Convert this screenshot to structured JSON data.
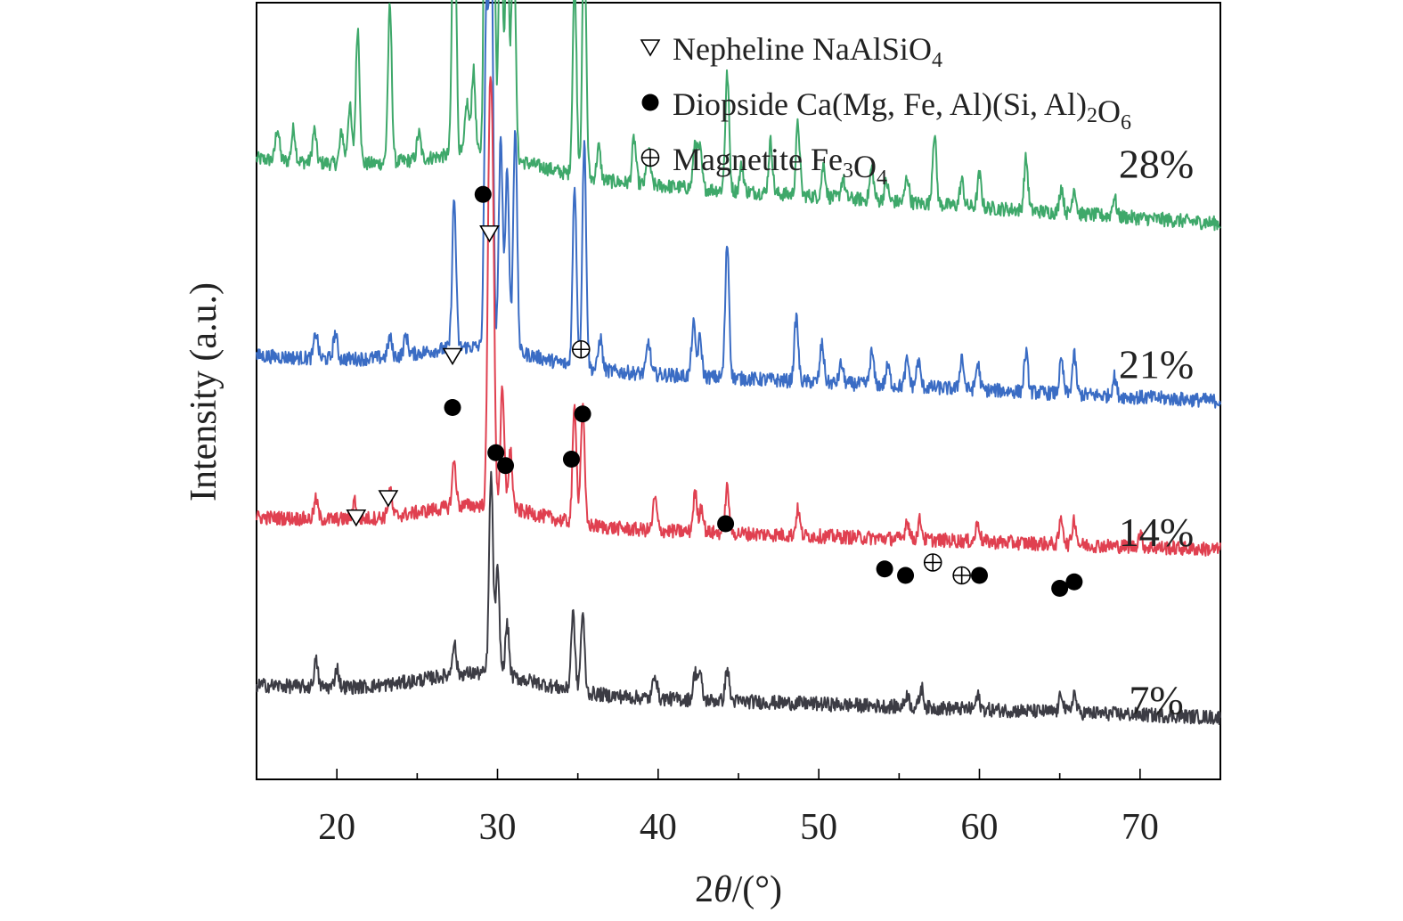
{
  "chart_data": {
    "type": "line",
    "title": "",
    "xlabel_prefix": "2",
    "xlabel_symbol": "θ",
    "xlabel_suffix": "/(°)",
    "ylabel": "Intensity (a.u.)",
    "xlim": [
      15,
      75
    ],
    "xticks": [
      20,
      30,
      40,
      50,
      60,
      70
    ],
    "grid": false,
    "legend_position": "top-right",
    "legend": [
      {
        "marker": "nepheline",
        "name": "Nepheline NaAlSiO",
        "sub": "4",
        "tail": "",
        "sub2": "",
        "tail2": ""
      },
      {
        "marker": "diopside",
        "name": "Diopside Ca(Mg, Fe, Al)(Si, Al)",
        "sub": "2",
        "tail": "O",
        "sub2": "6",
        "tail2": ""
      },
      {
        "marker": "magnetite",
        "name": "Magnetite Fe",
        "sub": "3",
        "tail": "O",
        "sub2": "4",
        "tail2": ""
      }
    ],
    "series": [
      {
        "name": "28%",
        "color": "#3ea86a",
        "baseline": 0.885,
        "slope": -0.1,
        "peaks": [
          [
            16.3,
            0.05
          ],
          [
            17.3,
            0.05
          ],
          [
            18.6,
            0.05
          ],
          [
            20.3,
            0.05
          ],
          [
            20.8,
            0.09
          ],
          [
            21.3,
            0.21
          ],
          [
            23.3,
            0.24
          ],
          [
            25.1,
            0.04
          ],
          [
            27.3,
            0.48
          ],
          [
            28.1,
            0.08
          ],
          [
            28.5,
            0.13
          ],
          [
            29.3,
            0.79
          ],
          [
            29.7,
            0.66
          ],
          [
            30.2,
            0.42
          ],
          [
            30.6,
            0.36
          ],
          [
            31.0,
            0.38
          ],
          [
            34.8,
            0.3
          ],
          [
            35.4,
            0.38
          ],
          [
            36.3,
            0.05
          ],
          [
            38.5,
            0.07
          ],
          [
            39.4,
            0.05
          ],
          [
            42.3,
            0.07
          ],
          [
            42.6,
            0.06
          ],
          [
            44.3,
            0.18
          ],
          [
            45.2,
            0.04
          ],
          [
            47.0,
            0.08
          ],
          [
            48.7,
            0.11
          ],
          [
            50.3,
            0.05
          ],
          [
            51.5,
            0.03
          ],
          [
            53.3,
            0.05
          ],
          [
            54.2,
            0.03
          ],
          [
            55.5,
            0.04
          ],
          [
            57.2,
            0.11
          ],
          [
            58.9,
            0.04
          ],
          [
            60.0,
            0.05
          ],
          [
            62.9,
            0.08
          ],
          [
            65.1,
            0.04
          ],
          [
            65.9,
            0.04
          ],
          [
            68.4,
            0.03
          ]
        ]
      },
      {
        "name": "21%",
        "color": "#3a6cc4",
        "baseline": 0.58,
        "slope": -0.07,
        "peaks": [
          [
            18.7,
            0.04
          ],
          [
            19.9,
            0.04
          ],
          [
            23.3,
            0.03
          ],
          [
            24.3,
            0.03
          ],
          [
            27.3,
            0.23
          ],
          [
            29.3,
            0.5
          ],
          [
            29.6,
            0.68
          ],
          [
            30.2,
            0.33
          ],
          [
            30.6,
            0.28
          ],
          [
            31.1,
            0.35
          ],
          [
            34.8,
            0.28
          ],
          [
            35.4,
            0.35
          ],
          [
            36.4,
            0.05
          ],
          [
            39.4,
            0.05
          ],
          [
            42.2,
            0.08
          ],
          [
            42.6,
            0.06
          ],
          [
            44.3,
            0.21
          ],
          [
            48.6,
            0.1
          ],
          [
            50.2,
            0.06
          ],
          [
            51.4,
            0.03
          ],
          [
            53.3,
            0.05
          ],
          [
            54.3,
            0.03
          ],
          [
            55.5,
            0.04
          ],
          [
            56.2,
            0.04
          ],
          [
            58.9,
            0.05
          ],
          [
            59.9,
            0.04
          ],
          [
            62.9,
            0.06
          ],
          [
            65.1,
            0.05
          ],
          [
            65.9,
            0.06
          ],
          [
            68.4,
            0.03
          ]
        ]
      },
      {
        "name": "14%",
        "color": "#e04050",
        "baseline": 0.33,
        "slope": -0.05,
        "peaks": [
          [
            18.7,
            0.03
          ],
          [
            21.1,
            0.03
          ],
          [
            23.3,
            0.04
          ],
          [
            27.3,
            0.07
          ],
          [
            29.5,
            0.52
          ],
          [
            29.7,
            0.42
          ],
          [
            30.3,
            0.18
          ],
          [
            30.8,
            0.09
          ],
          [
            34.8,
            0.18
          ],
          [
            35.3,
            0.18
          ],
          [
            39.8,
            0.05
          ],
          [
            42.3,
            0.06
          ],
          [
            42.7,
            0.04
          ],
          [
            44.3,
            0.07
          ],
          [
            48.7,
            0.04
          ],
          [
            55.5,
            0.03
          ],
          [
            56.3,
            0.03
          ],
          [
            59.9,
            0.03
          ],
          [
            65.1,
            0.04
          ],
          [
            65.9,
            0.04
          ],
          [
            70.0,
            0.02
          ]
        ]
      },
      {
        "name": "7%",
        "color": "#3c3c44",
        "baseline": 0.07,
        "slope": -0.05,
        "peaks": [
          [
            18.7,
            0.04
          ],
          [
            20.0,
            0.03
          ],
          [
            27.3,
            0.05
          ],
          [
            29.6,
            0.31
          ],
          [
            30.0,
            0.16
          ],
          [
            30.6,
            0.08
          ],
          [
            34.7,
            0.12
          ],
          [
            35.3,
            0.12
          ],
          [
            39.8,
            0.04
          ],
          [
            42.3,
            0.04
          ],
          [
            42.6,
            0.04
          ],
          [
            44.3,
            0.05
          ],
          [
            55.5,
            0.02
          ],
          [
            56.4,
            0.03
          ],
          [
            59.9,
            0.02
          ],
          [
            65.1,
            0.03
          ],
          [
            65.9,
            0.03
          ]
        ]
      }
    ],
    "series_label_positions": [
      0.875,
      0.565,
      0.305,
      0.045
    ],
    "phase_markers": [
      {
        "type": "nepheline",
        "x": 21.2,
        "y": 0.33
      },
      {
        "type": "nepheline",
        "x": 23.2,
        "y": 0.36
      },
      {
        "type": "diopside",
        "x": 27.2,
        "y": 0.5
      },
      {
        "type": "nepheline",
        "x": 27.2,
        "y": 0.58
      },
      {
        "type": "diopside",
        "x": 29.1,
        "y": 0.83
      },
      {
        "type": "nepheline",
        "x": 29.5,
        "y": 0.77
      },
      {
        "type": "diopside",
        "x": 29.9,
        "y": 0.43
      },
      {
        "type": "diopside",
        "x": 30.5,
        "y": 0.41
      },
      {
        "type": "diopside",
        "x": 34.6,
        "y": 0.42
      },
      {
        "type": "diopside",
        "x": 35.3,
        "y": 0.49
      },
      {
        "type": "magnetite",
        "x": 35.2,
        "y": 0.59
      },
      {
        "type": "diopside",
        "x": 44.2,
        "y": 0.32
      },
      {
        "type": "diopside",
        "x": 54.1,
        "y": 0.25
      },
      {
        "type": "diopside",
        "x": 55.4,
        "y": 0.24
      },
      {
        "type": "magnetite",
        "x": 57.1,
        "y": 0.26
      },
      {
        "type": "magnetite",
        "x": 58.9,
        "y": 0.24
      },
      {
        "type": "diopside",
        "x": 60.0,
        "y": 0.24
      },
      {
        "type": "diopside",
        "x": 65.0,
        "y": 0.22
      },
      {
        "type": "diopside",
        "x": 65.9,
        "y": 0.23
      }
    ]
  }
}
